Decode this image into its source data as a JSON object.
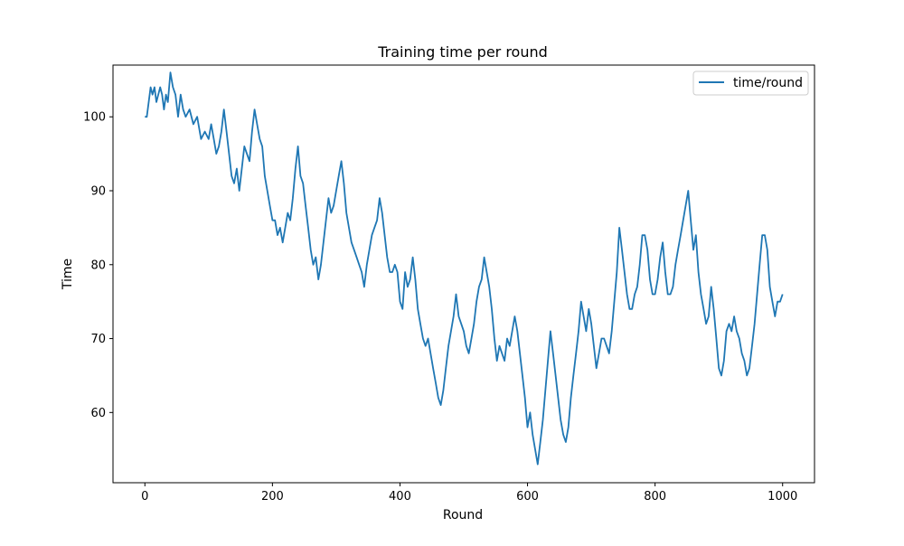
{
  "chart_data": {
    "type": "line",
    "title": "Training time per round",
    "xlabel": "Round",
    "ylabel": "Time",
    "xlim": [
      -50,
      1050
    ],
    "ylim": [
      50.5,
      107
    ],
    "xticks": [
      0,
      200,
      400,
      600,
      800,
      1000
    ],
    "yticks": [
      60,
      70,
      80,
      90,
      100
    ],
    "grid": false,
    "legend_position": "top-right",
    "series": [
      {
        "name": "time/round",
        "color": "#1f77b4",
        "points": [
          [
            0,
            100
          ],
          [
            3,
            100
          ],
          [
            6,
            102
          ],
          [
            9,
            104
          ],
          [
            12,
            103
          ],
          [
            15,
            104
          ],
          [
            18,
            102
          ],
          [
            21,
            103
          ],
          [
            24,
            104
          ],
          [
            27,
            103
          ],
          [
            30,
            101
          ],
          [
            33,
            103
          ],
          [
            36,
            102
          ],
          [
            40,
            106
          ],
          [
            44,
            104
          ],
          [
            48,
            103
          ],
          [
            52,
            100
          ],
          [
            56,
            103
          ],
          [
            60,
            101
          ],
          [
            64,
            100
          ],
          [
            70,
            101
          ],
          [
            76,
            99
          ],
          [
            82,
            100
          ],
          [
            88,
            97
          ],
          [
            94,
            98
          ],
          [
            100,
            97
          ],
          [
            104,
            99
          ],
          [
            108,
            97
          ],
          [
            112,
            95
          ],
          [
            116,
            96
          ],
          [
            120,
            98
          ],
          [
            124,
            101
          ],
          [
            128,
            98
          ],
          [
            132,
            95
          ],
          [
            136,
            92
          ],
          [
            140,
            91
          ],
          [
            144,
            93
          ],
          [
            148,
            90
          ],
          [
            152,
            93
          ],
          [
            156,
            96
          ],
          [
            160,
            95
          ],
          [
            164,
            94
          ],
          [
            168,
            98
          ],
          [
            172,
            101
          ],
          [
            176,
            99
          ],
          [
            180,
            97
          ],
          [
            184,
            96
          ],
          [
            188,
            92
          ],
          [
            192,
            90
          ],
          [
            196,
            88
          ],
          [
            200,
            86
          ],
          [
            204,
            86
          ],
          [
            208,
            84
          ],
          [
            212,
            85
          ],
          [
            216,
            83
          ],
          [
            220,
            85
          ],
          [
            224,
            87
          ],
          [
            228,
            86
          ],
          [
            232,
            89
          ],
          [
            236,
            93
          ],
          [
            240,
            96
          ],
          [
            244,
            92
          ],
          [
            248,
            91
          ],
          [
            252,
            88
          ],
          [
            256,
            85
          ],
          [
            260,
            82
          ],
          [
            264,
            80
          ],
          [
            268,
            81
          ],
          [
            272,
            78
          ],
          [
            276,
            80
          ],
          [
            280,
            83
          ],
          [
            284,
            86
          ],
          [
            288,
            89
          ],
          [
            292,
            87
          ],
          [
            296,
            88
          ],
          [
            300,
            90
          ],
          [
            304,
            92
          ],
          [
            308,
            94
          ],
          [
            312,
            91
          ],
          [
            316,
            87
          ],
          [
            320,
            85
          ],
          [
            324,
            83
          ],
          [
            328,
            82
          ],
          [
            332,
            81
          ],
          [
            336,
            80
          ],
          [
            340,
            79
          ],
          [
            344,
            77
          ],
          [
            348,
            80
          ],
          [
            352,
            82
          ],
          [
            356,
            84
          ],
          [
            360,
            85
          ],
          [
            364,
            86
          ],
          [
            368,
            89
          ],
          [
            372,
            87
          ],
          [
            376,
            84
          ],
          [
            380,
            81
          ],
          [
            384,
            79
          ],
          [
            388,
            79
          ],
          [
            392,
            80
          ],
          [
            396,
            79
          ],
          [
            400,
            75
          ],
          [
            404,
            74
          ],
          [
            408,
            79
          ],
          [
            412,
            77
          ],
          [
            416,
            78
          ],
          [
            420,
            81
          ],
          [
            424,
            78
          ],
          [
            428,
            74
          ],
          [
            432,
            72
          ],
          [
            436,
            70
          ],
          [
            440,
            69
          ],
          [
            444,
            70
          ],
          [
            448,
            68
          ],
          [
            452,
            66
          ],
          [
            456,
            64
          ],
          [
            460,
            62
          ],
          [
            464,
            61
          ],
          [
            468,
            63
          ],
          [
            472,
            66
          ],
          [
            476,
            69
          ],
          [
            480,
            71
          ],
          [
            484,
            73
          ],
          [
            488,
            76
          ],
          [
            492,
            73
          ],
          [
            496,
            72
          ],
          [
            500,
            71
          ],
          [
            504,
            69
          ],
          [
            508,
            68
          ],
          [
            512,
            70
          ],
          [
            516,
            72
          ],
          [
            520,
            75
          ],
          [
            524,
            77
          ],
          [
            528,
            78
          ],
          [
            532,
            81
          ],
          [
            536,
            79
          ],
          [
            540,
            77
          ],
          [
            544,
            74
          ],
          [
            548,
            70
          ],
          [
            552,
            67
          ],
          [
            556,
            69
          ],
          [
            560,
            68
          ],
          [
            564,
            67
          ],
          [
            568,
            70
          ],
          [
            572,
            69
          ],
          [
            576,
            71
          ],
          [
            580,
            73
          ],
          [
            584,
            71
          ],
          [
            588,
            68
          ],
          [
            592,
            65
          ],
          [
            596,
            62
          ],
          [
            600,
            58
          ],
          [
            604,
            60
          ],
          [
            608,
            57
          ],
          [
            612,
            55
          ],
          [
            616,
            53
          ],
          [
            620,
            56
          ],
          [
            624,
            59
          ],
          [
            628,
            63
          ],
          [
            632,
            67
          ],
          [
            636,
            71
          ],
          [
            640,
            68
          ],
          [
            644,
            65
          ],
          [
            648,
            62
          ],
          [
            652,
            59
          ],
          [
            656,
            57
          ],
          [
            660,
            56
          ],
          [
            664,
            58
          ],
          [
            668,
            62
          ],
          [
            672,
            65
          ],
          [
            676,
            68
          ],
          [
            680,
            71
          ],
          [
            684,
            75
          ],
          [
            688,
            73
          ],
          [
            692,
            71
          ],
          [
            696,
            74
          ],
          [
            700,
            72
          ],
          [
            704,
            69
          ],
          [
            708,
            66
          ],
          [
            712,
            68
          ],
          [
            716,
            70
          ],
          [
            720,
            70
          ],
          [
            724,
            69
          ],
          [
            728,
            68
          ],
          [
            732,
            71
          ],
          [
            736,
            75
          ],
          [
            740,
            79
          ],
          [
            744,
            85
          ],
          [
            748,
            82
          ],
          [
            752,
            79
          ],
          [
            756,
            76
          ],
          [
            760,
            74
          ],
          [
            764,
            74
          ],
          [
            768,
            76
          ],
          [
            772,
            77
          ],
          [
            776,
            80
          ],
          [
            780,
            84
          ],
          [
            784,
            84
          ],
          [
            788,
            82
          ],
          [
            792,
            78
          ],
          [
            796,
            76
          ],
          [
            800,
            76
          ],
          [
            804,
            78
          ],
          [
            808,
            81
          ],
          [
            812,
            83
          ],
          [
            816,
            79
          ],
          [
            820,
            76
          ],
          [
            824,
            76
          ],
          [
            828,
            77
          ],
          [
            832,
            80
          ],
          [
            836,
            82
          ],
          [
            840,
            84
          ],
          [
            844,
            86
          ],
          [
            848,
            88
          ],
          [
            852,
            90
          ],
          [
            856,
            86
          ],
          [
            860,
            82
          ],
          [
            864,
            84
          ],
          [
            868,
            79
          ],
          [
            872,
            76
          ],
          [
            876,
            74
          ],
          [
            880,
            72
          ],
          [
            884,
            73
          ],
          [
            888,
            77
          ],
          [
            892,
            74
          ],
          [
            896,
            70
          ],
          [
            900,
            66
          ],
          [
            904,
            65
          ],
          [
            908,
            67
          ],
          [
            912,
            71
          ],
          [
            916,
            72
          ],
          [
            920,
            71
          ],
          [
            924,
            73
          ],
          [
            928,
            71
          ],
          [
            932,
            70
          ],
          [
            936,
            68
          ],
          [
            940,
            67
          ],
          [
            944,
            65
          ],
          [
            948,
            66
          ],
          [
            952,
            69
          ],
          [
            956,
            72
          ],
          [
            960,
            76
          ],
          [
            964,
            80
          ],
          [
            968,
            84
          ],
          [
            972,
            84
          ],
          [
            976,
            82
          ],
          [
            980,
            77
          ],
          [
            984,
            75
          ],
          [
            988,
            73
          ],
          [
            992,
            75
          ],
          [
            996,
            75
          ],
          [
            1000,
            76
          ]
        ]
      }
    ]
  }
}
